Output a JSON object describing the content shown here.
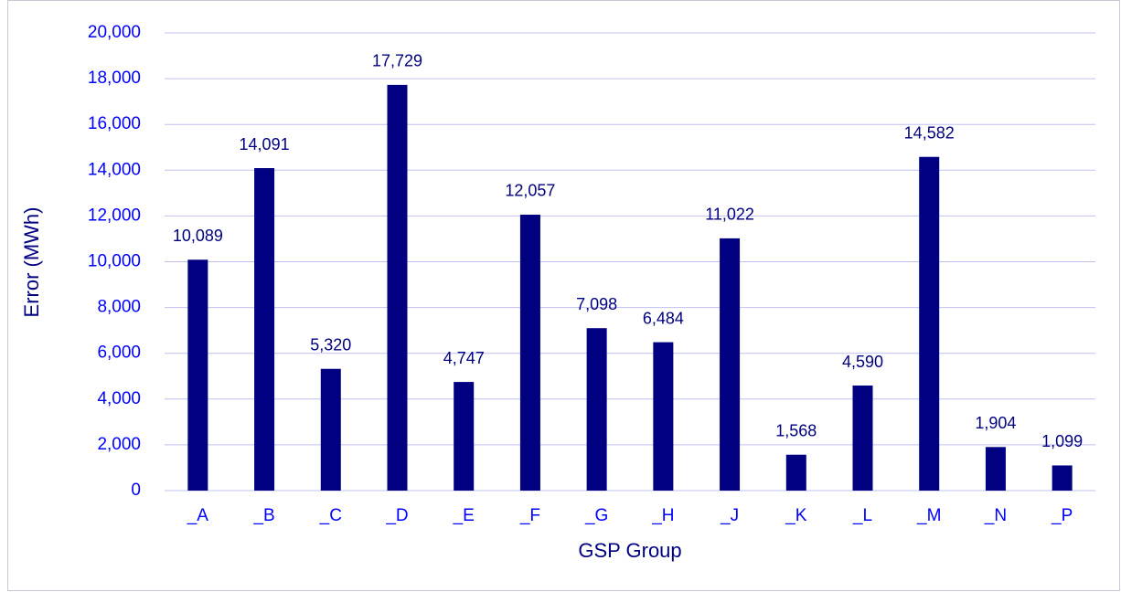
{
  "chart_data": {
    "type": "bar",
    "x_label": "GSP Group",
    "y_label": "Error (MWh)",
    "categories": [
      "_A",
      "_B",
      "_C",
      "_D",
      "_E",
      "_F",
      "_G",
      "_H",
      "_J",
      "_K",
      "_L",
      "_M",
      "_N",
      "_P"
    ],
    "values": [
      10089,
      14091,
      5320,
      17729,
      4747,
      12057,
      7098,
      6484,
      11022,
      1568,
      4590,
      14582,
      1904,
      1099
    ],
    "value_labels": [
      "10,089",
      "14,091",
      "5,320",
      "17,729",
      "4,747",
      "12,057",
      "7,098",
      "6,484",
      "11,022",
      "1,568",
      "4,590",
      "14,582",
      "1,904",
      "1,099"
    ],
    "color": "#000080",
    "ylim": [
      0,
      20000
    ],
    "yticks": [
      0,
      {
        "value": 2000,
        "label": "2,000"
      },
      {
        "value": 4000,
        "label": "4,000"
      },
      {
        "value": 6000,
        "label": "6,000"
      },
      {
        "value": 8000,
        "label": "8,000"
      },
      {
        "value": 10000,
        "label": "10,000"
      },
      {
        "value": 12000,
        "label": "12,000"
      },
      {
        "value": 14000,
        "label": "14,000"
      },
      {
        "value": 16000,
        "label": "16,000"
      },
      {
        "value": 18000,
        "label": "18,000"
      },
      {
        "value": 20000,
        "label": "20,000"
      }
    ],
    "grid": true
  }
}
